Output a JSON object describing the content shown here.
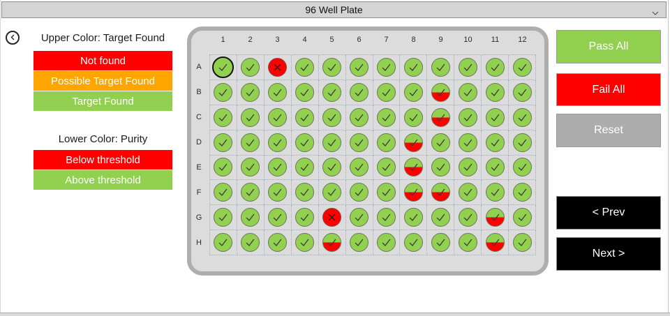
{
  "window": {
    "title": "96 Well Plate"
  },
  "legend": {
    "upper_heading": "Upper Color: Target Found",
    "upper_items": [
      {
        "label": "Not found",
        "color": "#ff0000"
      },
      {
        "label": "Possible Target Found",
        "color": "#ffa500"
      },
      {
        "label": "Target Found",
        "color": "#92d050"
      }
    ],
    "lower_heading": "Lower Color: Purity",
    "lower_items": [
      {
        "label": "Below threshold",
        "color": "#ff0000"
      },
      {
        "label": "Above threshold",
        "color": "#92d050"
      }
    ]
  },
  "plate": {
    "column_labels": [
      "1",
      "2",
      "3",
      "4",
      "5",
      "6",
      "7",
      "8",
      "9",
      "10",
      "11",
      "12"
    ],
    "row_labels": [
      "A",
      "B",
      "C",
      "D",
      "E",
      "F",
      "G",
      "H"
    ],
    "selected_well": "A1",
    "well_colors": {
      "pass": "#92d050",
      "fail": "#ff0000",
      "impure_top": "#92d050",
      "impure_bottom": "#ff0000"
    },
    "wells": [
      [
        "pass",
        "pass",
        "fail",
        "pass",
        "pass",
        "pass",
        "pass",
        "pass",
        "pass",
        "pass",
        "pass",
        "pass"
      ],
      [
        "pass",
        "pass",
        "pass",
        "pass",
        "pass",
        "pass",
        "pass",
        "pass",
        "impure",
        "pass",
        "pass",
        "pass"
      ],
      [
        "pass",
        "pass",
        "pass",
        "pass",
        "pass",
        "pass",
        "pass",
        "pass",
        "impure",
        "pass",
        "pass",
        "pass"
      ],
      [
        "pass",
        "pass",
        "pass",
        "pass",
        "pass",
        "pass",
        "pass",
        "impure",
        "pass",
        "pass",
        "pass",
        "pass"
      ],
      [
        "pass",
        "pass",
        "pass",
        "pass",
        "pass",
        "pass",
        "pass",
        "impure",
        "pass",
        "pass",
        "pass",
        "pass"
      ],
      [
        "pass",
        "pass",
        "pass",
        "pass",
        "pass",
        "pass",
        "pass",
        "impure",
        "impure",
        "pass",
        "pass",
        "pass"
      ],
      [
        "pass",
        "pass",
        "pass",
        "pass",
        "fail",
        "pass",
        "pass",
        "pass",
        "pass",
        "pass",
        "impure",
        "pass"
      ],
      [
        "pass",
        "pass",
        "pass",
        "pass",
        "impure",
        "pass",
        "pass",
        "pass",
        "pass",
        "pass",
        "impure",
        "pass"
      ]
    ]
  },
  "actions": {
    "pass_all": {
      "label": "Pass All",
      "color": "#92d050"
    },
    "fail_all": {
      "label": "Fail All",
      "color": "#ff0000"
    },
    "reset": {
      "label": "Reset",
      "color": "#acacac"
    },
    "prev": {
      "label": "< Prev",
      "color": "#000000"
    },
    "next": {
      "label": "Next >",
      "color": "#000000"
    }
  }
}
